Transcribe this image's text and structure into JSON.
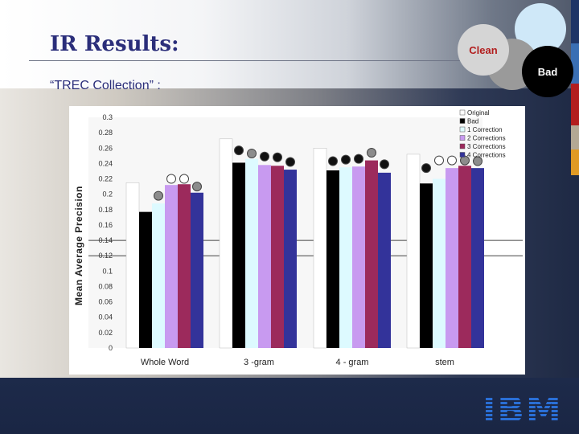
{
  "slide": {
    "title": "IR Results:",
    "subtitle": "“TREC Collection” :",
    "clean_label": "Clean",
    "bad_label": "Bad",
    "logo_text": "IBM"
  },
  "colors": {
    "title": "#2b2e7a",
    "clean_circle": "#d5d5d5",
    "bad_circle": "#000000",
    "gray_circle": "#a6a6a6",
    "accent_circle": "#cfe8f8"
  },
  "chart_data": {
    "type": "bar",
    "title": "",
    "xlabel": "",
    "ylabel": "Mean Average Precision",
    "ylim": [
      0,
      0.3
    ],
    "yticks": [
      "0",
      "0.02",
      "0.04",
      "0.06",
      "0.08",
      "0.1",
      "0.12",
      "0.14",
      "0.16",
      "0.18",
      "0.2",
      "0.22",
      "0.24",
      "0.26",
      "0.28",
      "0.3"
    ],
    "categories": [
      "Whole Word",
      "3 -gram",
      "4 - gram",
      "stem"
    ],
    "legend_position": "top-right",
    "series": [
      {
        "name": "Original",
        "color": "#ffffff",
        "values": [
          0.215,
          0.272,
          0.26,
          0.252
        ]
      },
      {
        "name": "Bad",
        "color": "#000000",
        "values": [
          0.177,
          0.241,
          0.231,
          0.214
        ]
      },
      {
        "name": "1 Correction",
        "color": "#ddfaff",
        "values": [
          0.188,
          0.246,
          0.235,
          0.22
        ]
      },
      {
        "name": "2 Corrections",
        "color": "#c89af0",
        "values": [
          0.212,
          0.238,
          0.236,
          0.234
        ]
      },
      {
        "name": "3 Corrections",
        "color": "#9c2a5c",
        "values": [
          0.213,
          0.237,
          0.244,
          0.237
        ]
      },
      {
        "name": "4 Corrections",
        "color": "#33339a",
        "values": [
          0.202,
          0.232,
          0.228,
          0.234
        ]
      }
    ],
    "markers": [
      {
        "category": 0,
        "series": 2,
        "value": 0.198,
        "style": "gray"
      },
      {
        "category": 0,
        "series": 3,
        "value": 0.22,
        "style": "open"
      },
      {
        "category": 0,
        "series": 4,
        "value": 0.22,
        "style": "open"
      },
      {
        "category": 0,
        "series": 5,
        "value": 0.21,
        "style": "gray"
      },
      {
        "category": 1,
        "series": 1,
        "value": 0.257,
        "style": "dark"
      },
      {
        "category": 1,
        "series": 2,
        "value": 0.253,
        "style": "gray"
      },
      {
        "category": 1,
        "series": 3,
        "value": 0.249,
        "style": "dark"
      },
      {
        "category": 1,
        "series": 4,
        "value": 0.248,
        "style": "dark"
      },
      {
        "category": 1,
        "series": 5,
        "value": 0.242,
        "style": "dark"
      },
      {
        "category": 2,
        "series": 1,
        "value": 0.243,
        "style": "dark"
      },
      {
        "category": 2,
        "series": 2,
        "value": 0.245,
        "style": "dark"
      },
      {
        "category": 2,
        "series": 3,
        "value": 0.246,
        "style": "dark"
      },
      {
        "category": 2,
        "series": 4,
        "value": 0.254,
        "style": "gray"
      },
      {
        "category": 2,
        "series": 5,
        "value": 0.239,
        "style": "dark"
      },
      {
        "category": 3,
        "series": 1,
        "value": 0.234,
        "style": "dark"
      },
      {
        "category": 3,
        "series": 2,
        "value": 0.244,
        "style": "open"
      },
      {
        "category": 3,
        "series": 3,
        "value": 0.244,
        "style": "open"
      },
      {
        "category": 3,
        "series": 4,
        "value": 0.244,
        "style": "gray"
      },
      {
        "category": 3,
        "series": 5,
        "value": 0.243,
        "style": "gray"
      }
    ],
    "grid": false,
    "reference_lines": [
      0.14,
      0.12
    ]
  }
}
